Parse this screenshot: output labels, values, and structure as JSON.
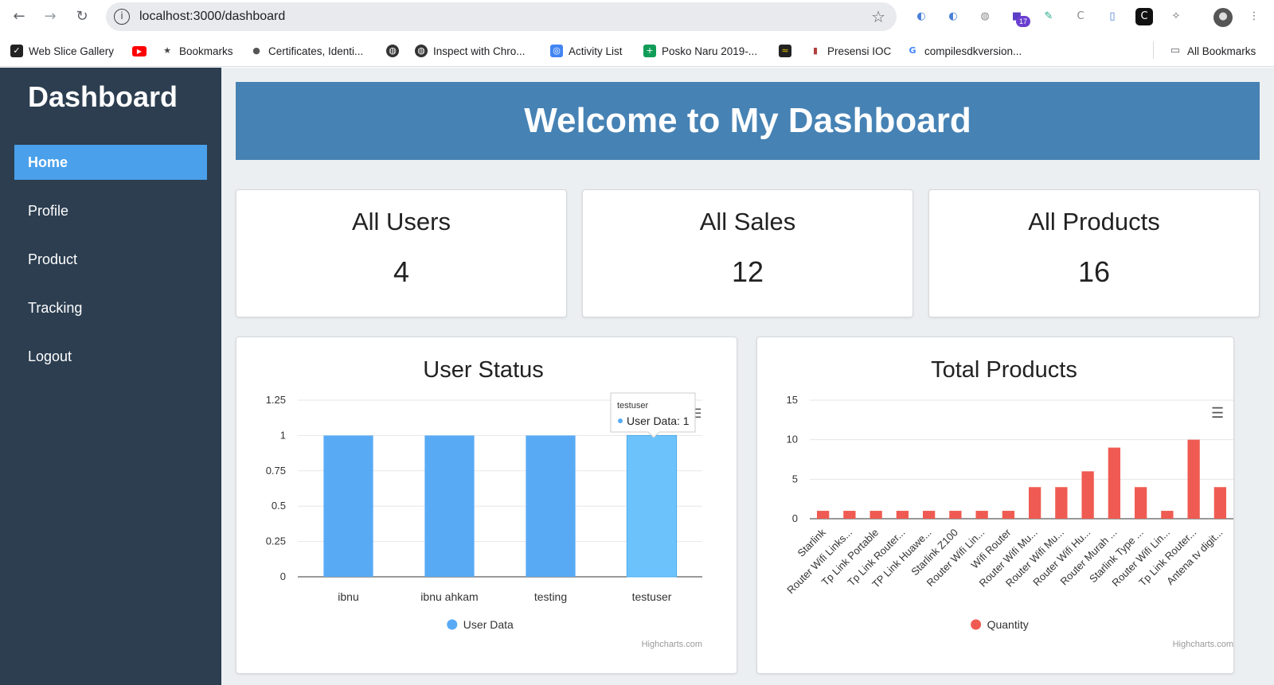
{
  "browser": {
    "url": "localhost:3000/dashboard",
    "bookmarks": [
      {
        "label": "Web Slice Gallery",
        "icon": "web-slice-icon",
        "color": "#222222"
      },
      {
        "label": "",
        "icon": "youtube-icon",
        "color": "#ff0000"
      },
      {
        "label": "Bookmarks",
        "icon": "star-icon",
        "color": "#444444"
      },
      {
        "label": "Certificates, Identi...",
        "icon": "apple-icon",
        "color": "#555555"
      },
      {
        "label": "",
        "icon": "globe-icon",
        "color": "#333333"
      },
      {
        "label": "Inspect with Chro...",
        "icon": "globe-icon",
        "color": "#333333"
      },
      {
        "label": "Activity List",
        "icon": "activity-icon",
        "color": "#4285f4"
      },
      {
        "label": "Posko Naru 2019-...",
        "icon": "sheets-icon",
        "color": "#0f9d58"
      },
      {
        "label": "",
        "icon": "zk-icon",
        "color": "#222222"
      },
      {
        "label": "Presensi IOC",
        "icon": "bookmark-icon",
        "color": "#b04040"
      },
      {
        "label": "compilesdkversion...",
        "icon": "google-icon",
        "color": "#4285f4"
      }
    ],
    "all_bookmarks": "All Bookmarks",
    "extension_badge": "17"
  },
  "sidebar": {
    "title": "Dashboard",
    "items": [
      {
        "label": "Home",
        "active": true
      },
      {
        "label": "Profile",
        "active": false
      },
      {
        "label": "Product",
        "active": false
      },
      {
        "label": "Tracking",
        "active": false
      },
      {
        "label": "Logout",
        "active": false
      }
    ]
  },
  "banner": {
    "title": "Welcome to My Dashboard"
  },
  "stats": [
    {
      "title": "All Users",
      "value": "4"
    },
    {
      "title": "All Sales",
      "value": "12"
    },
    {
      "title": "All Products",
      "value": "16"
    }
  ],
  "credits": "Highcharts.com",
  "chart_data": [
    {
      "type": "bar",
      "title": "User Status",
      "categories": [
        "ibnu",
        "ibnu ahkam",
        "testing",
        "testuser"
      ],
      "series": [
        {
          "name": "User Data",
          "values": [
            1,
            1,
            1,
            1
          ]
        }
      ],
      "yticks": [
        "0",
        "0.25",
        "0.5",
        "0.75",
        "1",
        "1.25"
      ],
      "ylim": [
        0,
        1.25
      ],
      "color": "#58aaf5",
      "hover_color": "#6cc3fc",
      "legend": "bottom",
      "tooltip": {
        "header": "testuser",
        "text": "User Data: 1"
      }
    },
    {
      "type": "bar",
      "title": "Total Products",
      "categories": [
        "Starlink",
        "Router Wifi Links...",
        "Tp Link Portable",
        "Tp Link Router...",
        "TP Link Huawe...",
        "Starlink Z100",
        "Router Wifi Lin...",
        "Wifi Router",
        "Router Wifi Mu...",
        "Router Wifi Mu...",
        "Router Wifi Hu...",
        "Router Murah ...",
        "Starlink Type ...",
        "Router Wifi Lin...",
        "Tp Link Router...",
        "Antena tv digit..."
      ],
      "series": [
        {
          "name": "Quantity",
          "values": [
            1,
            1,
            1,
            1,
            1,
            1,
            1,
            1,
            4,
            4,
            6,
            9,
            4,
            1,
            10,
            4
          ]
        }
      ],
      "yticks": [
        "0",
        "5",
        "10",
        "15"
      ],
      "ylim": [
        0,
        15
      ],
      "color": "#ef5b52",
      "legend": "bottom"
    }
  ]
}
